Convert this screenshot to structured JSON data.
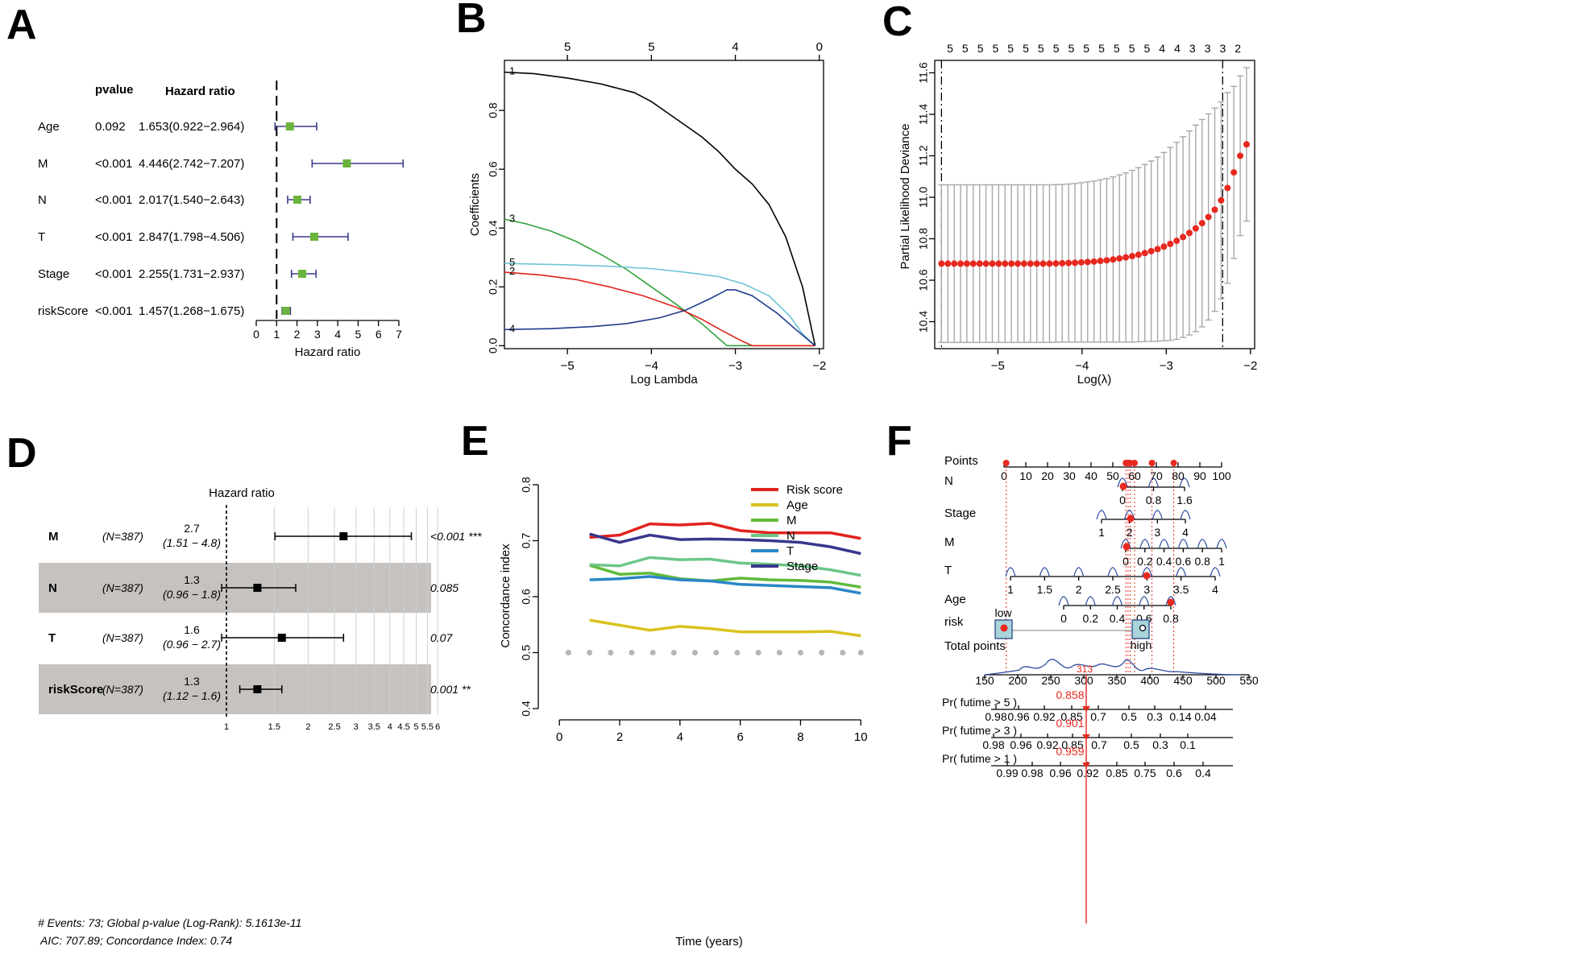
{
  "panels": [
    {
      "id": "A",
      "letter": "A"
    },
    {
      "id": "B",
      "letter": "B"
    },
    {
      "id": "C",
      "letter": "C"
    },
    {
      "id": "D",
      "letter": "D"
    },
    {
      "id": "E",
      "letter": "E"
    },
    {
      "id": "F",
      "letter": "F"
    }
  ],
  "colors": {
    "forest_box": "#6ab43e",
    "forest_line": "#3b3b8a",
    "lasso_dot": "#e8281e",
    "gray_band": "#c5c2bf"
  },
  "chart_data": [
    {
      "panel": "A",
      "type": "forest",
      "headers": {
        "pvalue": "pvalue",
        "hr": "Hazard ratio"
      },
      "xlabel": "Hazard ratio",
      "xlim": [
        0,
        7
      ],
      "xticks": [
        "0",
        "1",
        "2",
        "3",
        "4",
        "5",
        "6",
        "7"
      ],
      "reference": 1,
      "rows": [
        {
          "label": "Age",
          "pvalue": "0.092",
          "hr_text": "1.653(0.922−2.964)",
          "hr": 1.653,
          "lo": 0.922,
          "hi": 2.964
        },
        {
          "label": "M",
          "pvalue": "<0.001",
          "hr_text": "4.446(2.742−7.207)",
          "hr": 4.446,
          "lo": 2.742,
          "hi": 7.207
        },
        {
          "label": "N",
          "pvalue": "<0.001",
          "hr_text": "2.017(1.540−2.643)",
          "hr": 2.017,
          "lo": 1.54,
          "hi": 2.643
        },
        {
          "label": "T",
          "pvalue": "<0.001",
          "hr_text": "2.847(1.798−4.506)",
          "hr": 2.847,
          "lo": 1.798,
          "hi": 4.506
        },
        {
          "label": "Stage",
          "pvalue": "<0.001",
          "hr_text": "2.255(1.731−2.937)",
          "hr": 2.255,
          "lo": 1.731,
          "hi": 2.937
        },
        {
          "label": "riskScore",
          "pvalue": "<0.001",
          "hr_text": "1.457(1.268−1.675)",
          "hr": 1.457,
          "lo": 1.268,
          "hi": 1.675
        }
      ]
    },
    {
      "panel": "B",
      "type": "line",
      "xlabel": "Log Lambda",
      "ylabel": "Coefficients",
      "xlim": [
        -5.75,
        -1.95
      ],
      "ylim": [
        -0.01,
        0.97
      ],
      "xticks": [
        -5,
        -4,
        -3,
        -2
      ],
      "xtick_labels": [
        "−5",
        "−4",
        "−3",
        "−2"
      ],
      "yticks": [
        0.0,
        0.2,
        0.4,
        0.6,
        0.8
      ],
      "ytick_labels": [
        "0.0",
        "0.2",
        "0.4",
        "0.6",
        "0.8"
      ],
      "top_axis": {
        "x": [
          -5,
          -4,
          -3,
          -2
        ],
        "labels": [
          "5",
          "5",
          "4",
          "0"
        ]
      },
      "series": [
        {
          "name": "1",
          "color": "#000000",
          "x": [
            -5.75,
            -5.4,
            -5,
            -4.6,
            -4.2,
            -4,
            -3.8,
            -3.6,
            -3.4,
            -3.2,
            -3,
            -2.8,
            -2.6,
            -2.4,
            -2.2,
            -2.05
          ],
          "y": [
            0.93,
            0.925,
            0.91,
            0.89,
            0.86,
            0.83,
            0.79,
            0.75,
            0.71,
            0.66,
            0.6,
            0.55,
            0.48,
            0.37,
            0.2,
            0.0
          ]
        },
        {
          "name": "3",
          "color": "#31a33a",
          "x": [
            -5.75,
            -5.5,
            -5.2,
            -4.9,
            -4.6,
            -4.3,
            -4.0,
            -3.7,
            -3.4,
            -3.1,
            -2.05
          ],
          "y": [
            0.43,
            0.415,
            0.39,
            0.355,
            0.31,
            0.26,
            0.2,
            0.14,
            0.075,
            0.0,
            0.0
          ]
        },
        {
          "name": "5",
          "color": "#6fc4d6",
          "x": [
            -5.75,
            -5.0,
            -4.5,
            -4.0,
            -3.6,
            -3.2,
            -2.9,
            -2.6,
            -2.35,
            -2.2,
            -2.05
          ],
          "y": [
            0.28,
            0.275,
            0.27,
            0.262,
            0.25,
            0.235,
            0.21,
            0.17,
            0.1,
            0.04,
            0.0
          ]
        },
        {
          "name": "2",
          "color": "#e2221c",
          "x": [
            -5.75,
            -5.3,
            -4.9,
            -4.5,
            -4.1,
            -3.7,
            -3.4,
            -3.15,
            -2.95,
            -2.8,
            -2.05
          ],
          "y": [
            0.25,
            0.24,
            0.225,
            0.2,
            0.17,
            0.13,
            0.09,
            0.05,
            0.02,
            0.0,
            0.0
          ]
        },
        {
          "name": "4",
          "color": "#1f3b8c",
          "x": [
            -5.75,
            -5.2,
            -4.7,
            -4.3,
            -3.9,
            -3.6,
            -3.3,
            -3.1,
            -3.0,
            -2.8,
            -2.5,
            -2.3,
            -2.05
          ],
          "y": [
            0.055,
            0.058,
            0.065,
            0.075,
            0.095,
            0.12,
            0.16,
            0.19,
            0.19,
            0.17,
            0.11,
            0.06,
            0.0
          ]
        }
      ]
    },
    {
      "panel": "C",
      "type": "errorbar",
      "xlabel": "Log(λ)",
      "ylabel": "Partial Likelihood Deviance",
      "xlim": [
        -5.75,
        -1.95
      ],
      "ylim": [
        10.27,
        11.66
      ],
      "xticks": [
        -5,
        -4,
        -3,
        -2
      ],
      "xtick_labels": [
        "−5",
        "−4",
        "−3",
        "−2"
      ],
      "yticks": [
        10.4,
        10.6,
        10.8,
        11.0,
        11.2,
        11.4,
        11.6
      ],
      "ytick_labels": [
        "10.4",
        "10.6",
        "10.8",
        "11.0",
        "11.2",
        "11.4",
        "11.6"
      ],
      "top_labels": [
        "5",
        "5",
        "5",
        "5",
        "5",
        "5",
        "5",
        "5",
        "5",
        "5",
        "5",
        "5",
        "5",
        "5",
        "4",
        "4",
        "3",
        "3",
        "3",
        "2"
      ],
      "vlines": [
        -5.67,
        -2.33
      ],
      "n_points": 49,
      "x_start": -5.67,
      "x_step": 0.0755,
      "means": [
        10.68,
        10.68,
        10.68,
        10.68,
        10.68,
        10.68,
        10.68,
        10.68,
        10.68,
        10.68,
        10.68,
        10.68,
        10.68,
        10.68,
        10.68,
        10.68,
        10.68,
        10.68,
        10.681,
        10.682,
        10.683,
        10.684,
        10.686,
        10.688,
        10.69,
        10.693,
        10.696,
        10.7,
        10.705,
        10.71,
        10.716,
        10.723,
        10.731,
        10.74,
        10.75,
        10.762,
        10.775,
        10.79,
        10.808,
        10.828,
        10.85,
        10.875,
        10.905,
        10.94,
        10.985,
        11.045,
        11.12,
        11.2,
        11.255
      ],
      "se": [
        0.38,
        0.38,
        0.38,
        0.38,
        0.38,
        0.38,
        0.38,
        0.38,
        0.38,
        0.38,
        0.38,
        0.38,
        0.38,
        0.38,
        0.38,
        0.38,
        0.38,
        0.38,
        0.38,
        0.38,
        0.381,
        0.382,
        0.384,
        0.386,
        0.388,
        0.391,
        0.394,
        0.398,
        0.403,
        0.408,
        0.414,
        0.42,
        0.427,
        0.435,
        0.444,
        0.454,
        0.465,
        0.475,
        0.484,
        0.492,
        0.498,
        0.5,
        0.497,
        0.49,
        0.475,
        0.46,
        0.415,
        0.385,
        0.37
      ]
    },
    {
      "panel": "D",
      "type": "forest",
      "title": "Hazard ratio",
      "log_scale": true,
      "xlim_log": [
        1,
        5.56
      ],
      "grid": [
        1,
        1.5,
        2,
        2.5,
        3,
        3.5,
        4,
        4.5,
        5,
        5.5,
        6
      ],
      "tick_labels": [
        "1",
        "1.5",
        "2",
        "2.5",
        "3",
        "3.5",
        "4",
        "4.5",
        "5",
        "5.5",
        "6"
      ],
      "rows": [
        {
          "label": "M",
          "n": "(N=387)",
          "hr_val": "2.7",
          "ci": "(1.51 − 4.8)",
          "p": "<0.001 ***",
          "hr": 2.7,
          "lo": 1.51,
          "hi": 4.8,
          "shaded": false
        },
        {
          "label": "N",
          "n": "(N=387)",
          "hr_val": "1.3",
          "ci": "(0.96 − 1.8)",
          "p": "0.085",
          "hr": 1.3,
          "lo": 0.96,
          "hi": 1.8,
          "shaded": true
        },
        {
          "label": "T",
          "n": "(N=387)",
          "hr_val": "1.6",
          "ci": "(0.96 − 2.7)",
          "p": "0.07",
          "hr": 1.6,
          "lo": 0.96,
          "hi": 2.7,
          "shaded": false
        },
        {
          "label": "riskScore",
          "n": "(N=387)",
          "hr_val": "1.3",
          "ci": "(1.12 − 1.6)",
          "p": "0.001 **",
          "hr": 1.3,
          "lo": 1.12,
          "hi": 1.6,
          "shaded": true
        }
      ],
      "footnote1": "# Events: 73; Global p-value (Log-Rank): 5.1613e-11",
      "footnote2": "AIC: 707.89; Concordance Index: 0.74"
    },
    {
      "panel": "E",
      "type": "line",
      "xlabel": "Time (years)",
      "ylabel": "Concordance index",
      "xlim": [
        -0.3,
        10.1
      ],
      "ylim": [
        0.38,
        0.81
      ],
      "xticks": [
        0,
        2,
        4,
        6,
        8,
        10
      ],
      "xtick_labels": [
        "0",
        "2",
        "4",
        "6",
        "8",
        "10"
      ],
      "yticks": [
        0.4,
        0.5,
        0.6,
        0.7,
        0.8
      ],
      "ytick_labels": [
        "0.4",
        "0.5",
        "0.6",
        "0.7",
        "0.8"
      ],
      "x": [
        1,
        2,
        3,
        4,
        5,
        6,
        7,
        8,
        9,
        10
      ],
      "reference_dots": {
        "x": [
          0.3,
          1,
          1.7,
          2.4,
          3.1,
          3.8,
          4.5,
          5.2,
          5.9,
          6.6,
          7.3,
          8,
          8.7,
          9.4,
          10
        ],
        "y": 0.5
      },
      "series": [
        {
          "name": "Risk score",
          "color": "#e2221c",
          "values": [
            0.706,
            0.71,
            0.73,
            0.728,
            0.731,
            0.718,
            0.714,
            0.714,
            0.714,
            0.704
          ]
        },
        {
          "name": "Age",
          "color": "#d9c21e",
          "values": [
            0.558,
            0.549,
            0.54,
            0.547,
            0.543,
            0.537,
            0.537,
            0.537,
            0.538,
            0.53
          ]
        },
        {
          "name": "M",
          "color": "#5fba3a",
          "values": [
            0.656,
            0.64,
            0.642,
            0.632,
            0.628,
            0.633,
            0.63,
            0.629,
            0.626,
            0.617
          ]
        },
        {
          "name": "N",
          "color": "#6cc687",
          "values": [
            0.657,
            0.655,
            0.67,
            0.666,
            0.667,
            0.66,
            0.658,
            0.655,
            0.648,
            0.638
          ]
        },
        {
          "name": "T",
          "color": "#2b86c7",
          "values": [
            0.63,
            0.632,
            0.636,
            0.63,
            0.628,
            0.622,
            0.62,
            0.618,
            0.616,
            0.606
          ]
        },
        {
          "name": "Stage",
          "color": "#39378c",
          "values": [
            0.712,
            0.697,
            0.71,
            0.702,
            0.703,
            0.702,
            0.7,
            0.697,
            0.689,
            0.677
          ]
        }
      ]
    },
    {
      "panel": "F",
      "type": "nomogram",
      "points_label": "Points",
      "points_ticks": [
        "0",
        "10",
        "20",
        "30",
        "40",
        "50",
        "60",
        "70",
        "80",
        "90",
        "100"
      ],
      "variables": [
        {
          "label": "N",
          "ticks": [
            "0",
            "0.8",
            "1.6"
          ],
          "tick_pos": [
            0,
            0.8,
            1.6
          ],
          "range": [
            0,
            1.8
          ]
        },
        {
          "label": "Stage",
          "ticks": [
            "1",
            "2",
            "3",
            "4"
          ],
          "tick_pos": [
            1,
            2,
            3,
            4
          ],
          "range": [
            1,
            4
          ]
        },
        {
          "label": "M",
          "ticks": [
            "0",
            "0.2",
            "0.4",
            "0.6",
            "0.8",
            "1"
          ],
          "tick_pos": [
            0,
            0.2,
            0.4,
            0.6,
            0.8,
            1
          ],
          "range": [
            0,
            1
          ]
        },
        {
          "label": "T",
          "ticks": [
            "1",
            "1.5",
            "2",
            "2.5",
            "3",
            "3.5",
            "4"
          ],
          "tick_pos": [
            1,
            1.5,
            2,
            2.5,
            3,
            3.5,
            4
          ],
          "range": [
            1,
            4
          ]
        },
        {
          "label": "Age",
          "ticks": [
            "0",
            "0.2",
            "0.4",
            "0.6",
            "0.8"
          ],
          "tick_pos": [
            0,
            0.2,
            0.4,
            0.6,
            0.8
          ],
          "range": [
            0,
            1
          ]
        }
      ],
      "risk": {
        "label": "risk",
        "low": "low",
        "high": "high"
      },
      "total_label": "Total points",
      "total_ticks": [
        "150",
        "200",
        "250",
        "300",
        "350",
        "400",
        "450",
        "500",
        "550"
      ],
      "total_value_label": "313",
      "survival": [
        {
          "label": "Pr( futime > 5 )",
          "value": "0.858",
          "ticks": [
            "0.98",
            "0.96",
            "0.92",
            "0.85",
            "0.7",
            "0.5",
            "0.3",
            "0.14",
            "0.04"
          ]
        },
        {
          "label": "Pr( futime > 3 )",
          "value": "0.901",
          "ticks": [
            "0.98",
            "0.96",
            "0.92",
            "0.85",
            "0.7",
            "0.5",
            "0.3",
            "0.1"
          ]
        },
        {
          "label": "Pr( futime > 1 )",
          "value": "0.959",
          "ticks": [
            "0.99",
            "0.98",
            "0.96",
            "0.92",
            "0.85",
            "0.75",
            "0.6",
            "0.4"
          ]
        }
      ],
      "selected_points": [
        1,
        56,
        57,
        58,
        60,
        68,
        78
      ]
    }
  ]
}
